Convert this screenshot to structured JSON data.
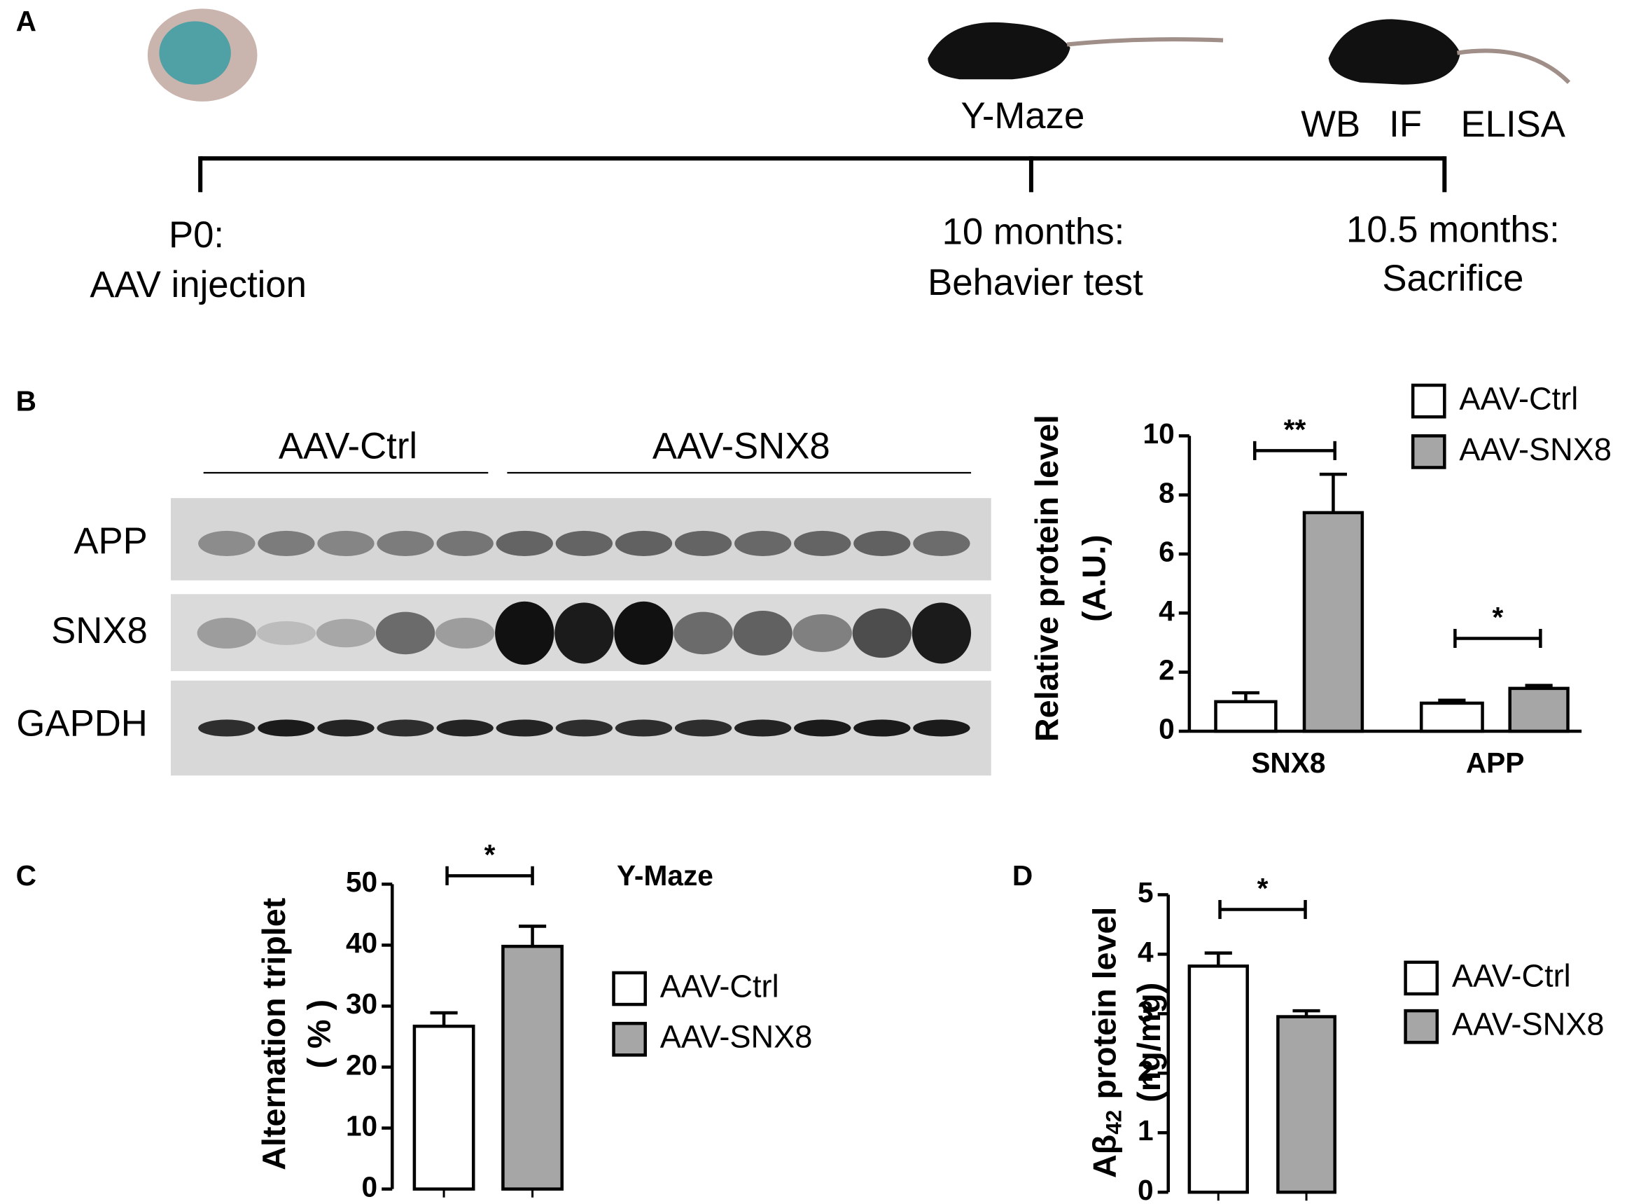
{
  "panel_labels": [
    "A",
    "B",
    "C",
    "D"
  ],
  "timeline": {
    "start": {
      "label": [
        "P0:",
        "AAV injection"
      ]
    },
    "middle": {
      "assays": [
        "Y-Maze"
      ],
      "label": [
        "10 months:",
        "Behavier test"
      ]
    },
    "end": {
      "assays": [
        "WB",
        "IF",
        "ELISA"
      ],
      "label": [
        "10.5 months:",
        "Sacrifice"
      ]
    }
  },
  "western_blot": {
    "groups": [
      "AAV-Ctrl",
      "AAV-SNX8"
    ],
    "rows": [
      "APP",
      "SNX8",
      "GAPDH"
    ]
  },
  "chart_data": [
    {
      "type": "bar",
      "ylabel": [
        "Relative protein level",
        "(A.U.)"
      ],
      "categories": [
        "SNX8",
        "APP"
      ],
      "series": [
        {
          "name": "AAV-Ctrl",
          "color": "#ffffff",
          "values": [
            1.0,
            0.95
          ],
          "errors": [
            0.3,
            0.1
          ]
        },
        {
          "name": "AAV-SNX8",
          "color": "#a6a6a6",
          "values": [
            7.4,
            1.45
          ],
          "errors": [
            1.3,
            0.1
          ]
        }
      ],
      "ylim": [
        0,
        10
      ],
      "yticks": [
        0,
        2,
        4,
        6,
        8,
        10
      ],
      "annotations": [
        "**",
        "*"
      ]
    },
    {
      "type": "bar",
      "title": "Y-Maze",
      "ylabel": [
        "Alternation triplet",
        "( % )"
      ],
      "series": [
        {
          "name": "AAV-Ctrl",
          "color": "#ffffff",
          "values": [
            26.7
          ],
          "errors": [
            2.2
          ]
        },
        {
          "name": "AAV-SNX8",
          "color": "#a6a6a6",
          "values": [
            39.8
          ],
          "errors": [
            3.3
          ]
        }
      ],
      "ylim": [
        0,
        50
      ],
      "yticks": [
        0,
        10,
        20,
        30,
        40,
        50
      ],
      "annotations": [
        "*"
      ]
    },
    {
      "type": "bar",
      "ylabel": [
        "Aβ",
        "42",
        "protein level",
        "(ng/mg)"
      ],
      "series": [
        {
          "name": "AAV-Ctrl",
          "color": "#ffffff",
          "values": [
            3.8
          ],
          "errors": [
            0.22
          ]
        },
        {
          "name": "AAV-SNX8",
          "color": "#a6a6a6",
          "values": [
            2.95
          ],
          "errors": [
            0.1
          ]
        }
      ],
      "ylim": [
        0,
        5
      ],
      "yticks": [
        0,
        1,
        2,
        3,
        4,
        5
      ],
      "annotations": [
        "*"
      ]
    }
  ]
}
